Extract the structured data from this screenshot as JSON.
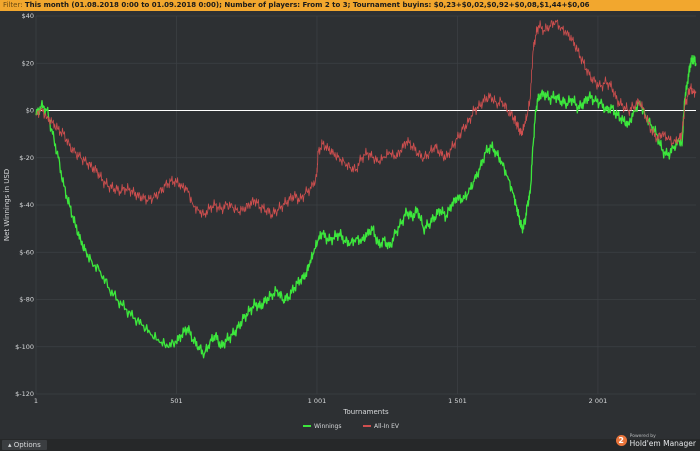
{
  "filter": {
    "label": "Filter:",
    "text": "This month (01.08.2018 0:00 to 01.09.2018 0:00); Number of players: From 2 to 3; Tournament buyins: $0,23+$0,02,$0,92+$0,08,$1,44+$0,06"
  },
  "options": {
    "label": "Options",
    "icon": "caret-up-icon"
  },
  "logo": {
    "small": "Powered by",
    "name": "Hold'em Manager",
    "badge": "2"
  },
  "colors": {
    "winnings": "#3ce63c",
    "allin_ev": "#cf4f4f",
    "zero_line": "#ffffff",
    "grid": "#3d4145",
    "background": "#2d3033"
  },
  "chart_data": {
    "type": "line",
    "title": "",
    "xlabel": "Tournaments",
    "ylabel": "Net Winnings in USD",
    "xlim": [
      1,
      2350
    ],
    "ylim": [
      -120,
      40
    ],
    "x_ticks": [
      1,
      501,
      1001,
      1501,
      2001
    ],
    "x_tick_labels": [
      "1",
      "501",
      "1 001",
      "1 501",
      "2 001"
    ],
    "y_ticks": [
      40,
      20,
      0,
      -20,
      -40,
      -60,
      -80,
      -100,
      -120
    ],
    "y_tick_labels": [
      "$40",
      "$20",
      "$0",
      "$-20",
      "$-40",
      "$-60",
      "$-80",
      "$-100",
      "$-120"
    ],
    "grid": true,
    "legend_position": "bottom-center",
    "series": [
      {
        "name": "Winnings",
        "color": "#3ce63c",
        "points": [
          [
            1,
            -2
          ],
          [
            20,
            2
          ],
          [
            40,
            0
          ],
          [
            60,
            -10
          ],
          [
            80,
            -20
          ],
          [
            100,
            -32
          ],
          [
            120,
            -40
          ],
          [
            140,
            -48
          ],
          [
            160,
            -55
          ],
          [
            180,
            -60
          ],
          [
            200,
            -64
          ],
          [
            230,
            -68
          ],
          [
            260,
            -75
          ],
          [
            290,
            -80
          ],
          [
            320,
            -84
          ],
          [
            350,
            -88
          ],
          [
            380,
            -91
          ],
          [
            410,
            -95
          ],
          [
            440,
            -98
          ],
          [
            470,
            -100
          ],
          [
            500,
            -98
          ],
          [
            520,
            -95
          ],
          [
            540,
            -92
          ],
          [
            560,
            -97
          ],
          [
            580,
            -100
          ],
          [
            600,
            -103
          ],
          [
            620,
            -98
          ],
          [
            640,
            -95
          ],
          [
            660,
            -100
          ],
          [
            680,
            -97
          ],
          [
            700,
            -95
          ],
          [
            720,
            -92
          ],
          [
            740,
            -88
          ],
          [
            760,
            -85
          ],
          [
            780,
            -82
          ],
          [
            800,
            -83
          ],
          [
            820,
            -80
          ],
          [
            840,
            -78
          ],
          [
            860,
            -76
          ],
          [
            880,
            -80
          ],
          [
            900,
            -79
          ],
          [
            920,
            -75
          ],
          [
            940,
            -72
          ],
          [
            960,
            -70
          ],
          [
            975,
            -65
          ],
          [
            990,
            -60
          ],
          [
            1005,
            -55
          ],
          [
            1020,
            -52
          ],
          [
            1040,
            -55
          ],
          [
            1060,
            -54
          ],
          [
            1080,
            -52
          ],
          [
            1100,
            -55
          ],
          [
            1120,
            -56
          ],
          [
            1140,
            -54
          ],
          [
            1160,
            -55
          ],
          [
            1180,
            -52
          ],
          [
            1200,
            -50
          ],
          [
            1220,
            -57
          ],
          [
            1240,
            -55
          ],
          [
            1260,
            -58
          ],
          [
            1280,
            -52
          ],
          [
            1300,
            -48
          ],
          [
            1320,
            -43
          ],
          [
            1340,
            -45
          ],
          [
            1360,
            -42
          ],
          [
            1380,
            -50
          ],
          [
            1400,
            -48
          ],
          [
            1420,
            -45
          ],
          [
            1440,
            -42
          ],
          [
            1460,
            -45
          ],
          [
            1480,
            -40
          ],
          [
            1500,
            -37
          ],
          [
            1520,
            -38
          ],
          [
            1540,
            -35
          ],
          [
            1560,
            -30
          ],
          [
            1580,
            -25
          ],
          [
            1600,
            -18
          ],
          [
            1620,
            -15
          ],
          [
            1640,
            -18
          ],
          [
            1660,
            -22
          ],
          [
            1680,
            -28
          ],
          [
            1700,
            -35
          ],
          [
            1710,
            -40
          ],
          [
            1720,
            -45
          ],
          [
            1730,
            -50
          ],
          [
            1740,
            -48
          ],
          [
            1750,
            -40
          ],
          [
            1760,
            -35
          ],
          [
            1770,
            -15
          ],
          [
            1780,
            0
          ],
          [
            1790,
            6
          ],
          [
            1810,
            7
          ],
          [
            1830,
            5
          ],
          [
            1850,
            6
          ],
          [
            1870,
            4
          ],
          [
            1890,
            3
          ],
          [
            1910,
            5
          ],
          [
            1930,
            1
          ],
          [
            1950,
            3
          ],
          [
            1970,
            6
          ],
          [
            1990,
            4
          ],
          [
            2010,
            3
          ],
          [
            2030,
            0
          ],
          [
            2050,
            1
          ],
          [
            2070,
            -2
          ],
          [
            2090,
            -4
          ],
          [
            2110,
            -6
          ],
          [
            2130,
            0
          ],
          [
            2150,
            4
          ],
          [
            2170,
            -2
          ],
          [
            2190,
            -6
          ],
          [
            2210,
            -10
          ],
          [
            2230,
            -17
          ],
          [
            2250,
            -19
          ],
          [
            2270,
            -16
          ],
          [
            2290,
            -13
          ],
          [
            2300,
            -15
          ],
          [
            2310,
            5
          ],
          [
            2320,
            12
          ],
          [
            2330,
            20
          ],
          [
            2340,
            22
          ],
          [
            2350,
            20
          ]
        ]
      },
      {
        "name": "All-In EV",
        "color": "#cf4f4f",
        "points": [
          [
            1,
            -2
          ],
          [
            20,
            1
          ],
          [
            40,
            -3
          ],
          [
            60,
            -5
          ],
          [
            80,
            -8
          ],
          [
            100,
            -10
          ],
          [
            120,
            -15
          ],
          [
            140,
            -18
          ],
          [
            160,
            -20
          ],
          [
            180,
            -22
          ],
          [
            200,
            -24
          ],
          [
            220,
            -26
          ],
          [
            240,
            -30
          ],
          [
            260,
            -32
          ],
          [
            280,
            -33
          ],
          [
            300,
            -34
          ],
          [
            320,
            -33
          ],
          [
            340,
            -34
          ],
          [
            360,
            -36
          ],
          [
            380,
            -37
          ],
          [
            400,
            -38
          ],
          [
            420,
            -37
          ],
          [
            440,
            -35
          ],
          [
            460,
            -32
          ],
          [
            480,
            -30
          ],
          [
            500,
            -30
          ],
          [
            520,
            -32
          ],
          [
            540,
            -33
          ],
          [
            560,
            -40
          ],
          [
            580,
            -42
          ],
          [
            600,
            -44
          ],
          [
            620,
            -41
          ],
          [
            640,
            -40
          ],
          [
            660,
            -42
          ],
          [
            680,
            -40
          ],
          [
            700,
            -41
          ],
          [
            720,
            -43
          ],
          [
            740,
            -42
          ],
          [
            760,
            -40
          ],
          [
            780,
            -38
          ],
          [
            800,
            -41
          ],
          [
            820,
            -42
          ],
          [
            840,
            -44
          ],
          [
            860,
            -42
          ],
          [
            880,
            -40
          ],
          [
            900,
            -38
          ],
          [
            920,
            -36
          ],
          [
            940,
            -38
          ],
          [
            960,
            -35
          ],
          [
            980,
            -33
          ],
          [
            1000,
            -28
          ],
          [
            1005,
            -18
          ],
          [
            1020,
            -14
          ],
          [
            1040,
            -16
          ],
          [
            1060,
            -18
          ],
          [
            1080,
            -20
          ],
          [
            1100,
            -22
          ],
          [
            1120,
            -24
          ],
          [
            1140,
            -25
          ],
          [
            1160,
            -20
          ],
          [
            1180,
            -18
          ],
          [
            1200,
            -20
          ],
          [
            1220,
            -22
          ],
          [
            1240,
            -20
          ],
          [
            1260,
            -18
          ],
          [
            1280,
            -20
          ],
          [
            1300,
            -17
          ],
          [
            1320,
            -13
          ],
          [
            1340,
            -15
          ],
          [
            1360,
            -18
          ],
          [
            1380,
            -20
          ],
          [
            1400,
            -18
          ],
          [
            1420,
            -15
          ],
          [
            1440,
            -18
          ],
          [
            1460,
            -20
          ],
          [
            1480,
            -16
          ],
          [
            1500,
            -12
          ],
          [
            1520,
            -8
          ],
          [
            1540,
            -5
          ],
          [
            1560,
            0
          ],
          [
            1580,
            2
          ],
          [
            1600,
            5
          ],
          [
            1620,
            6
          ],
          [
            1640,
            3
          ],
          [
            1660,
            4
          ],
          [
            1680,
            0
          ],
          [
            1700,
            -3
          ],
          [
            1710,
            -5
          ],
          [
            1720,
            -8
          ],
          [
            1730,
            -10
          ],
          [
            1740,
            -6
          ],
          [
            1750,
            -2
          ],
          [
            1760,
            5
          ],
          [
            1770,
            25
          ],
          [
            1780,
            32
          ],
          [
            1790,
            36
          ],
          [
            1810,
            34
          ],
          [
            1830,
            36
          ],
          [
            1850,
            38
          ],
          [
            1870,
            35
          ],
          [
            1890,
            33
          ],
          [
            1910,
            30
          ],
          [
            1930,
            25
          ],
          [
            1950,
            20
          ],
          [
            1970,
            15
          ],
          [
            1990,
            12
          ],
          [
            2010,
            10
          ],
          [
            2030,
            12
          ],
          [
            2050,
            10
          ],
          [
            2070,
            4
          ],
          [
            2090,
            2
          ],
          [
            2110,
            0
          ],
          [
            2130,
            2
          ],
          [
            2150,
            4
          ],
          [
            2170,
            -2
          ],
          [
            2190,
            -8
          ],
          [
            2210,
            -12
          ],
          [
            2230,
            -10
          ],
          [
            2250,
            -12
          ],
          [
            2270,
            -14
          ],
          [
            2290,
            -12
          ],
          [
            2300,
            -10
          ],
          [
            2310,
            2
          ],
          [
            2320,
            6
          ],
          [
            2330,
            10
          ],
          [
            2340,
            8
          ],
          [
            2350,
            8
          ]
        ]
      }
    ]
  }
}
